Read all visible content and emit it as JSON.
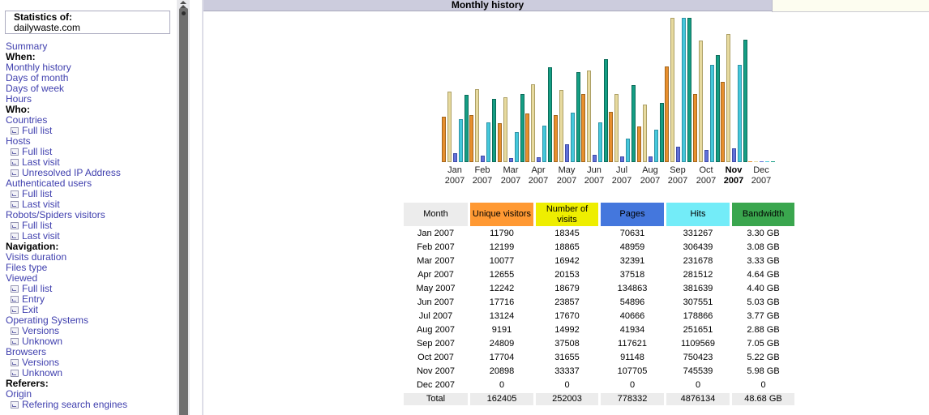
{
  "sidebar": {
    "stats_box": {
      "label": "Statistics of:",
      "site": "dailywaste.com"
    },
    "link_color": "#3F3FAE",
    "items": [
      {
        "type": "link",
        "label": "Summary"
      },
      {
        "type": "header",
        "label": "When:"
      },
      {
        "type": "link",
        "label": "Monthly history"
      },
      {
        "type": "link",
        "label": "Days of month"
      },
      {
        "type": "link",
        "label": "Days of week"
      },
      {
        "type": "link",
        "label": "Hours"
      },
      {
        "type": "header",
        "label": "Who:"
      },
      {
        "type": "link",
        "label": "Countries"
      },
      {
        "type": "sublink",
        "label": "Full list"
      },
      {
        "type": "link",
        "label": "Hosts"
      },
      {
        "type": "sublink",
        "label": "Full list"
      },
      {
        "type": "sublink",
        "label": "Last visit"
      },
      {
        "type": "sublink",
        "label": "Unresolved IP Address"
      },
      {
        "type": "link",
        "label": "Authenticated users"
      },
      {
        "type": "sublink",
        "label": "Full list"
      },
      {
        "type": "sublink",
        "label": "Last visit"
      },
      {
        "type": "link",
        "label": "Robots/Spiders visitors"
      },
      {
        "type": "sublink",
        "label": "Full list"
      },
      {
        "type": "sublink",
        "label": "Last visit"
      },
      {
        "type": "header",
        "label": "Navigation:"
      },
      {
        "type": "link",
        "label": "Visits duration"
      },
      {
        "type": "link",
        "label": "Files type"
      },
      {
        "type": "link",
        "label": "Viewed"
      },
      {
        "type": "sublink",
        "label": "Full list"
      },
      {
        "type": "sublink",
        "label": "Entry"
      },
      {
        "type": "sublink",
        "label": "Exit"
      },
      {
        "type": "link",
        "label": "Operating Systems"
      },
      {
        "type": "sublink",
        "label": "Versions"
      },
      {
        "type": "sublink",
        "label": "Unknown"
      },
      {
        "type": "link",
        "label": "Browsers"
      },
      {
        "type": "sublink",
        "label": "Versions"
      },
      {
        "type": "sublink",
        "label": "Unknown"
      },
      {
        "type": "header",
        "label": "Referers:"
      },
      {
        "type": "link",
        "label": "Origin"
      },
      {
        "type": "sublink",
        "label": "Refering search engines"
      }
    ]
  },
  "main": {
    "title": "Monthly history"
  },
  "chart_data": {
    "type": "bar",
    "title": "Monthly history",
    "categories": [
      "Jan 2007",
      "Feb 2007",
      "Mar 2007",
      "Apr 2007",
      "May 2007",
      "Jun 2007",
      "Jul 2007",
      "Aug 2007",
      "Sep 2007",
      "Oct 2007",
      "Nov 2007",
      "Dec 2007"
    ],
    "current_month": "Nov 2007",
    "legend_position": "none",
    "grid": false,
    "scaling_note": "AWStats style: visitors+visits scaled to their joint max (37508); pages+hits scaled to joint max (1109569); bandwidth scaled to its max (7.05)",
    "series": [
      {
        "name": "Unique visitors",
        "fill": "#E78F2E",
        "border": "#A3661C",
        "values": [
          11790,
          12199,
          10077,
          12655,
          12242,
          17716,
          13124,
          9191,
          24809,
          17704,
          20898,
          0
        ]
      },
      {
        "name": "Number of visits",
        "fill": "#E7DA9F",
        "border": "#ADA066",
        "values": [
          18345,
          18865,
          16942,
          20153,
          18679,
          23857,
          17670,
          14992,
          37508,
          31655,
          33337,
          0
        ]
      },
      {
        "name": "Pages",
        "fill": "#6171D9",
        "border": "#3E4CA8",
        "values": [
          70631,
          48959,
          32391,
          37518,
          134863,
          54896,
          40666,
          41934,
          117621,
          91148,
          107705,
          0
        ]
      },
      {
        "name": "Hits",
        "fill": "#45C8DB",
        "border": "#2E93A6",
        "values": [
          331267,
          306439,
          231678,
          281512,
          381639,
          307551,
          178866,
          251651,
          1109569,
          750423,
          745539,
          0
        ]
      },
      {
        "name": "Bandwidth",
        "unit": "GB",
        "fill": "#159E84",
        "border": "#0B6B59",
        "values": [
          3.3,
          3.08,
          3.33,
          4.64,
          4.4,
          5.03,
          3.77,
          2.88,
          7.05,
          5.22,
          5.98,
          0
        ]
      }
    ]
  },
  "table": {
    "columns": [
      "Month",
      "Unique visitors",
      "Number of visits",
      "Pages",
      "Hits",
      "Bandwidth"
    ],
    "header_colors": [
      "#ECECEC",
      "#FF9933",
      "#EEEE00",
      "#4477DD",
      "#73ECF8",
      "#3AA64E"
    ],
    "total_bg": "#ECECEC",
    "rows": [
      {
        "month": "Jan 2007",
        "bold": false,
        "values": [
          "11790",
          "18345",
          "70631",
          "331267",
          "3.30 GB"
        ]
      },
      {
        "month": "Feb 2007",
        "bold": false,
        "values": [
          "12199",
          "18865",
          "48959",
          "306439",
          "3.08 GB"
        ]
      },
      {
        "month": "Mar 2007",
        "bold": false,
        "values": [
          "10077",
          "16942",
          "32391",
          "231678",
          "3.33 GB"
        ]
      },
      {
        "month": "Apr 2007",
        "bold": false,
        "values": [
          "12655",
          "20153",
          "37518",
          "281512",
          "4.64 GB"
        ]
      },
      {
        "month": "May 2007",
        "bold": false,
        "values": [
          "12242",
          "18679",
          "134863",
          "381639",
          "4.40 GB"
        ]
      },
      {
        "month": "Jun 2007",
        "bold": false,
        "values": [
          "17716",
          "23857",
          "54896",
          "307551",
          "5.03 GB"
        ]
      },
      {
        "month": "Jul 2007",
        "bold": false,
        "values": [
          "13124",
          "17670",
          "40666",
          "178866",
          "3.77 GB"
        ]
      },
      {
        "month": "Aug 2007",
        "bold": false,
        "values": [
          "9191",
          "14992",
          "41934",
          "251651",
          "2.88 GB"
        ]
      },
      {
        "month": "Sep 2007",
        "bold": false,
        "values": [
          "24809",
          "37508",
          "117621",
          "1109569",
          "7.05 GB"
        ]
      },
      {
        "month": "Oct 2007",
        "bold": false,
        "values": [
          "17704",
          "31655",
          "91148",
          "750423",
          "5.22 GB"
        ]
      },
      {
        "month": "Nov 2007",
        "bold": true,
        "values": [
          "20898",
          "33337",
          "107705",
          "745539",
          "5.98 GB"
        ]
      },
      {
        "month": "Dec 2007",
        "bold": false,
        "values": [
          "0",
          "0",
          "0",
          "0",
          "0"
        ]
      }
    ],
    "total": {
      "label": "Total",
      "values": [
        "162405",
        "252003",
        "778332",
        "4876134",
        "48.68 GB"
      ]
    }
  }
}
